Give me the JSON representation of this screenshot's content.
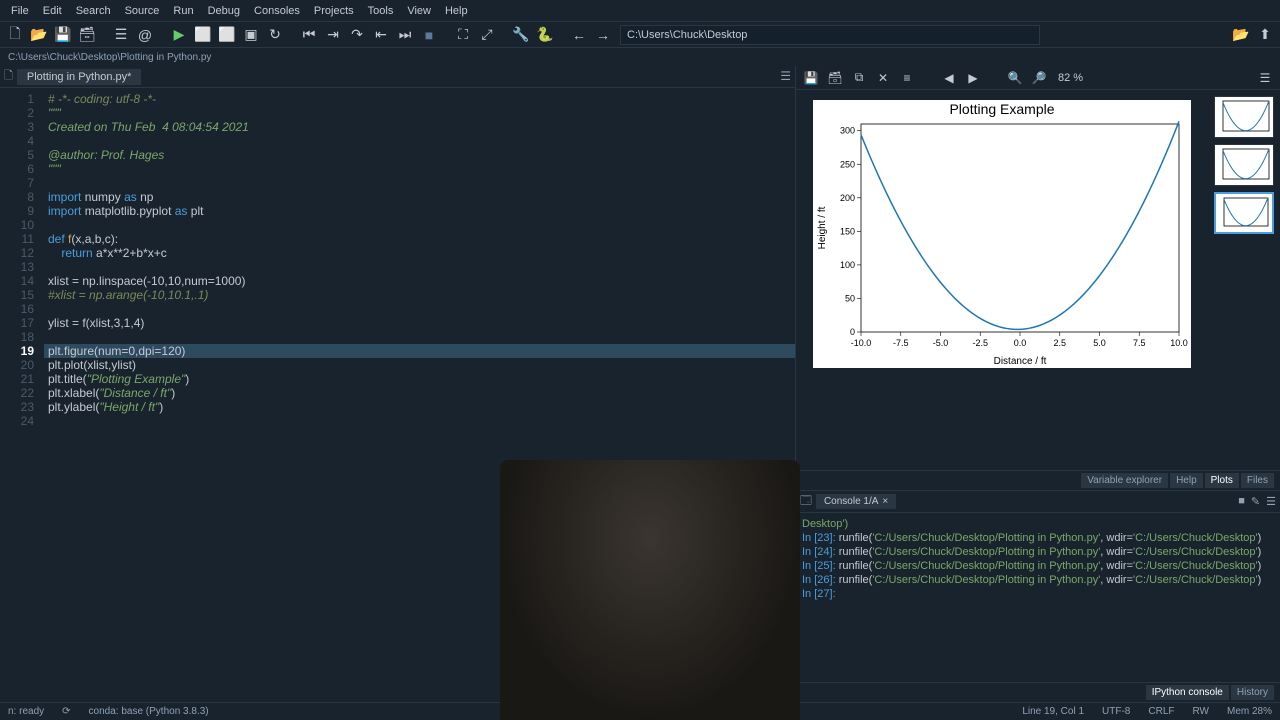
{
  "menu": [
    "File",
    "Edit",
    "Search",
    "Source",
    "Run",
    "Debug",
    "Consoles",
    "Projects",
    "Tools",
    "View",
    "Help"
  ],
  "toolbar_path": "C:\\Users\\Chuck\\Desktop",
  "breadcrumb": "C:\\Users\\Chuck\\Desktop\\Plotting in Python.py",
  "editor_tab": "Plotting in Python.py*",
  "code_lines": [
    {
      "n": 1,
      "html": "<span class='c'># -*- coding: utf-8 -*-</span>"
    },
    {
      "n": 2,
      "html": "<span class='s'>\"\"\"</span>"
    },
    {
      "n": 3,
      "html": "<span class='s'>Created on Thu Feb  4 08:04:54 2021</span>"
    },
    {
      "n": 4,
      "html": ""
    },
    {
      "n": 5,
      "html": "<span class='s'>@author: Prof. Hages</span>"
    },
    {
      "n": 6,
      "html": "<span class='s'>\"\"\"</span>"
    },
    {
      "n": 7,
      "html": ""
    },
    {
      "n": 8,
      "html": "<span class='k'>import</span> <span class='n'>numpy</span> <span class='k'>as</span> <span class='n'>np</span>"
    },
    {
      "n": 9,
      "html": "<span class='k'>import</span> <span class='n'>matplotlib.pyplot</span> <span class='k'>as</span> <span class='n'>plt</span>"
    },
    {
      "n": 10,
      "html": ""
    },
    {
      "n": 11,
      "html": "<span class='k'>def</span> <span class='f'>f</span>(x,a,b,c):"
    },
    {
      "n": 12,
      "html": "    <span class='k'>return</span> a*x**2+b*x+c"
    },
    {
      "n": 13,
      "html": ""
    },
    {
      "n": 14,
      "html": "xlist = np.linspace(-10,10,num=1000)"
    },
    {
      "n": 15,
      "html": "<span class='c'>#xlist = np.arange(-10,10.1,.1)</span>"
    },
    {
      "n": 16,
      "html": ""
    },
    {
      "n": 17,
      "html": "ylist = f(xlist,3,1,4)"
    },
    {
      "n": 18,
      "html": ""
    },
    {
      "n": 19,
      "html": "plt.figure(num=0,dpi=120)",
      "hl": true
    },
    {
      "n": 20,
      "html": "plt.plot(xlist,ylist)"
    },
    {
      "n": 21,
      "html": "plt.title(<span class='s'>\"Plotting Example\"</span>)"
    },
    {
      "n": 22,
      "html": "plt.xlabel(<span class='s'>\"Distance / ft\"</span>)"
    },
    {
      "n": 23,
      "html": "plt.ylabel(<span class='s'>\"Height / ft\"</span>)"
    },
    {
      "n": 24,
      "html": ""
    }
  ],
  "current_line": 19,
  "plot_zoom": "82 %",
  "chart": {
    "type": "line",
    "title": "Plotting Example",
    "title_fontsize": 14,
    "xlabel": "Distance / ft",
    "ylabel": "Height / ft",
    "label_fontsize": 10,
    "xlim": [
      -10,
      10
    ],
    "ylim": [
      0,
      310
    ],
    "xticks": [
      -10.0,
      -7.5,
      -5.0,
      -2.5,
      0.0,
      2.5,
      5.0,
      7.5,
      10.0
    ],
    "yticks": [
      0,
      50,
      100,
      150,
      200,
      250,
      300
    ],
    "line_color": "#1f77b4",
    "background": "#ffffff",
    "axis_color": "#000000",
    "tick_fontsize": 9,
    "coeffs": {
      "a": 3,
      "b": 1,
      "c": 4
    }
  },
  "panel_tabs": [
    "Variable explorer",
    "Help",
    "Plots",
    "Files"
  ],
  "panel_active": "Plots",
  "console_tab": "Console 1/A",
  "console_lines": [
    {
      "text": "Desktop')",
      "cls": "g"
    },
    {
      "text": "",
      "cls": ""
    },
    {
      "prompt": "In [23]:",
      "rest": " runfile('C:/Users/Chuck/Desktop/Plotting in Python.py', wdir='C:/Users/Chuck/Desktop')"
    },
    {
      "text": "",
      "cls": ""
    },
    {
      "prompt": "In [24]:",
      "rest": " runfile('C:/Users/Chuck/Desktop/Plotting in Python.py', wdir='C:/Users/Chuck/Desktop')"
    },
    {
      "text": "",
      "cls": ""
    },
    {
      "prompt": "In [25]:",
      "rest": " runfile('C:/Users/Chuck/Desktop/Plotting in Python.py', wdir='C:/Users/Chuck/Desktop')"
    },
    {
      "text": "",
      "cls": ""
    },
    {
      "prompt": "In [26]:",
      "rest": " runfile('C:/Users/Chuck/Desktop/Plotting in Python.py', wdir='C:/Users/Chuck/Desktop')"
    },
    {
      "text": "",
      "cls": ""
    },
    {
      "prompt": "In [27]:",
      "rest": " "
    }
  ],
  "console_bot_tabs": [
    "IPython console",
    "History"
  ],
  "console_bot_active": "IPython console",
  "status": {
    "lsp": "n: ready",
    "env": "conda: base (Python 3.8.3)",
    "pos": "Line 19, Col 1",
    "enc": "UTF-8",
    "eol": "CRLF",
    "rw": "RW",
    "mem": "Mem 28%"
  }
}
